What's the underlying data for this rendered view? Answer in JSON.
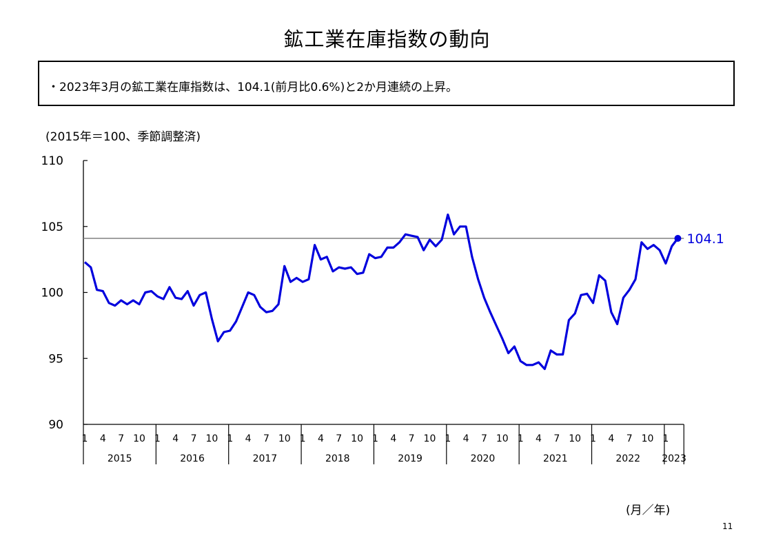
{
  "page": {
    "title": "鉱工業在庫指数の動向",
    "summary": "・2023年3月の鉱工業在庫指数は、104.1(前月比0.6%)と2か月連続の上昇。",
    "unit_note": "(2015年＝100、季節調整済)",
    "x_axis_unit": "(月／年)",
    "page_number": "11"
  },
  "chart_data": {
    "type": "line",
    "title": "",
    "xlabel": "(月／年)",
    "ylabel": "(2015年＝100、季節調整済)",
    "ylim": [
      90,
      110
    ],
    "yticks": [
      90,
      95,
      100,
      105,
      110
    ],
    "grid": false,
    "legend": "none",
    "years": [
      "2015",
      "2016",
      "2017",
      "2018",
      "2019",
      "2020",
      "2021",
      "2022",
      "2023"
    ],
    "month_ticks": [
      "1",
      "4",
      "7",
      "10"
    ],
    "reference_line": {
      "value": 104.1
    },
    "latest_label": "104.1",
    "colors": {
      "series": "#0000dd",
      "reference": "#808080",
      "axis": "#000000"
    },
    "series": [
      {
        "start": "2015-01",
        "values": [
          102.3,
          101.9,
          100.2,
          100.1,
          99.2,
          99.0,
          99.4,
          99.1,
          99.4,
          99.1,
          100.0,
          100.1,
          99.7,
          99.5,
          100.4,
          99.6,
          99.5,
          100.1,
          99.0,
          99.8,
          100.0,
          98.0,
          96.3,
          97.0,
          97.1,
          97.8,
          98.9,
          100.0,
          99.8,
          98.9,
          98.5,
          98.6,
          99.1,
          102.0,
          100.8,
          101.1,
          100.8,
          101.0,
          103.6,
          102.5,
          102.7,
          101.6,
          101.9,
          101.8,
          101.9,
          101.4,
          101.5,
          102.9,
          102.6,
          102.7,
          103.4,
          103.4,
          103.8,
          104.4,
          104.3,
          104.2,
          103.2,
          104.0,
          103.5,
          104.0,
          105.9,
          104.4,
          105.0,
          105.0,
          102.7,
          101.0,
          99.6,
          98.5,
          97.5,
          96.5,
          95.4,
          95.9,
          94.8,
          94.5,
          94.5,
          94.7,
          94.2,
          95.6,
          95.3,
          95.3,
          97.9,
          98.4,
          99.8,
          99.9,
          99.2,
          101.3,
          100.9,
          98.5,
          97.6,
          99.6,
          100.2,
          101.0,
          103.8,
          103.3,
          103.6,
          103.2,
          102.2,
          103.5,
          104.1
        ]
      }
    ]
  }
}
